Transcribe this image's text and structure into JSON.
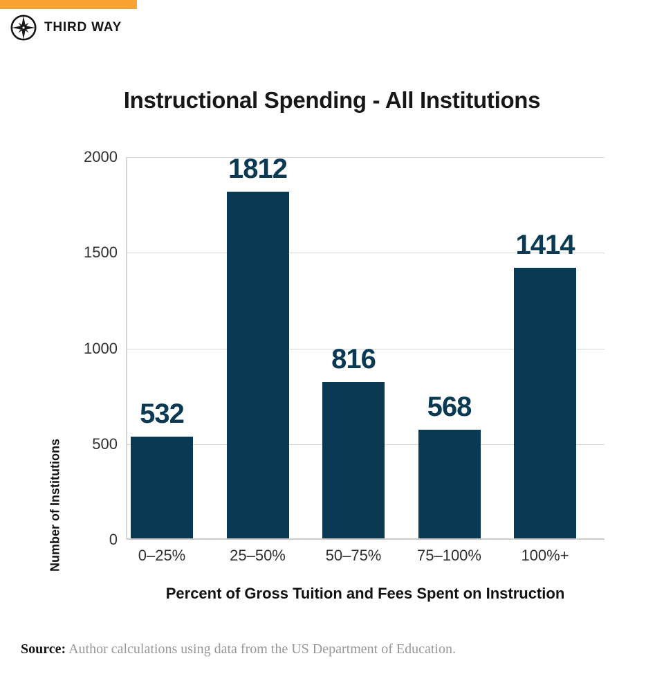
{
  "brand": {
    "logo_text": "THIRD WAY",
    "orange": "#F9A431",
    "compass_icon": "compass-icon",
    "logo_color": "#161616"
  },
  "chart_data": {
    "type": "bar",
    "title": "Instructional Spending - All Institutions",
    "categories": [
      "0–25%",
      "25–50%",
      "50–75%",
      "75–100%",
      "100%+"
    ],
    "values": [
      532,
      1812,
      816,
      568,
      1414
    ],
    "xlabel": "Percent of Gross Tuition and Fees Spent on Instruction",
    "ylabel": "Number of Institutions",
    "ylim": [
      0,
      2000
    ],
    "yticks": [
      0,
      500,
      1000,
      1500,
      2000
    ],
    "grid": "horizontal",
    "legend": "none",
    "bar_color": "#0A3A53",
    "value_label_color": "#0A3A53",
    "gridline_color": "#d6d6d6"
  },
  "source": {
    "label": "Source:",
    "text": " Author calculations using data from the US Department of Education."
  }
}
